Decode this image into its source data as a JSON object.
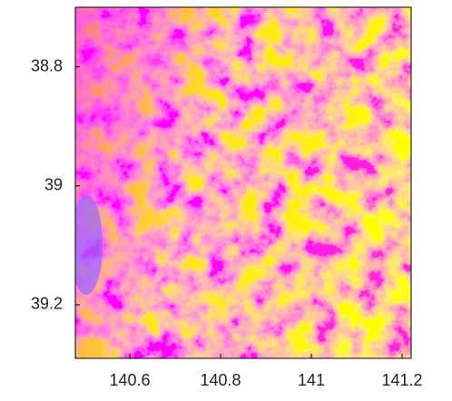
{
  "chart_data": {
    "type": "image",
    "xlim": [
      140.48,
      141.22
    ],
    "xticks": [
      140.6,
      140.8,
      141,
      141.2
    ],
    "ylim": [
      39.29,
      38.7
    ],
    "yticks": [
      38.8,
      39,
      39.2
    ]
  }
}
